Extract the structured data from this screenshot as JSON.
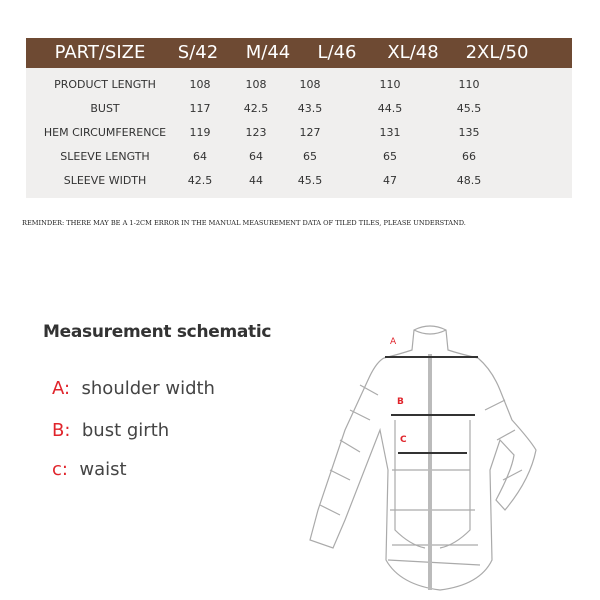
{
  "size_table": {
    "headers": [
      "PART/SIZE",
      "S/42",
      "M/44",
      "L/46",
      "XL/48",
      "2XL/50"
    ],
    "rows": [
      {
        "part": "PRODUCT LENGTH",
        "values": [
          "108",
          "108",
          "108",
          "110",
          "110"
        ]
      },
      {
        "part": "BUST",
        "values": [
          "117",
          "42.5",
          "43.5",
          "44.5",
          "45.5"
        ]
      },
      {
        "part": "HEM CIRCUMFERENCE",
        "values": [
          "119",
          "123",
          "127",
          "131",
          "135"
        ]
      },
      {
        "part": "SLEEVE LENGTH",
        "values": [
          "64",
          "64",
          "65",
          "65",
          "66"
        ]
      },
      {
        "part": "SLEEVE WIDTH",
        "values": [
          "42.5",
          "44",
          "45.5",
          "47",
          "48.5"
        ]
      }
    ],
    "header_color": "#6e4a33"
  },
  "reminder": "REMINDER: THERE MAY BE A 1-2CM ERROR IN THE MANUAL MEASUREMENT DATA OF TILED TILES, PLEASE UNDERSTAND.",
  "schematic": {
    "title": "Measurement schematic",
    "legend": [
      {
        "key": "A:",
        "label": "shoulder width"
      },
      {
        "key": "B:",
        "label": "bust girth"
      },
      {
        "key": "c:",
        "label": "waist"
      }
    ],
    "markers": [
      "A",
      "B",
      "C"
    ],
    "accent_color": "#e0242b"
  }
}
